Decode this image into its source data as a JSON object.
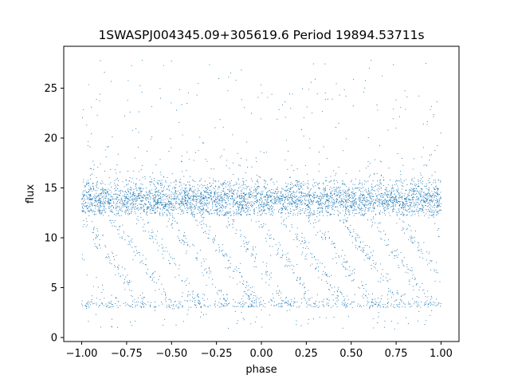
{
  "chart_data": {
    "type": "scatter",
    "title": "1SWASPJ004345.09+305619.6 Period 19894.53711s",
    "xlabel": "phase",
    "ylabel": "flux",
    "xlim": [
      -1.1,
      1.1
    ],
    "ylim": [
      -0.4,
      29.2
    ],
    "xticks": [
      -1.0,
      -0.75,
      -0.5,
      -0.25,
      0.0,
      0.25,
      0.5,
      0.75,
      1.0
    ],
    "xtick_labels": [
      "−1.00",
      "−0.75",
      "−0.50",
      "−0.25",
      "0.00",
      "0.25",
      "0.50",
      "0.75",
      "1.00"
    ],
    "yticks": [
      0,
      5,
      10,
      15,
      20,
      25
    ],
    "ytick_labels": [
      "0",
      "5",
      "10",
      "15",
      "20",
      "25"
    ],
    "grid": false,
    "legend": "none",
    "marker_color": "#1f77b4",
    "series": [
      {
        "description_of_distribution": "dense band",
        "x_range": [
          -1.0,
          1.0
        ],
        "band_center": 13.8,
        "band_low": 12.2,
        "band_high": 15.7,
        "lower_floor": 3.0,
        "scatter_max": 27.8,
        "n_points_shown": 6000
      }
    ]
  }
}
